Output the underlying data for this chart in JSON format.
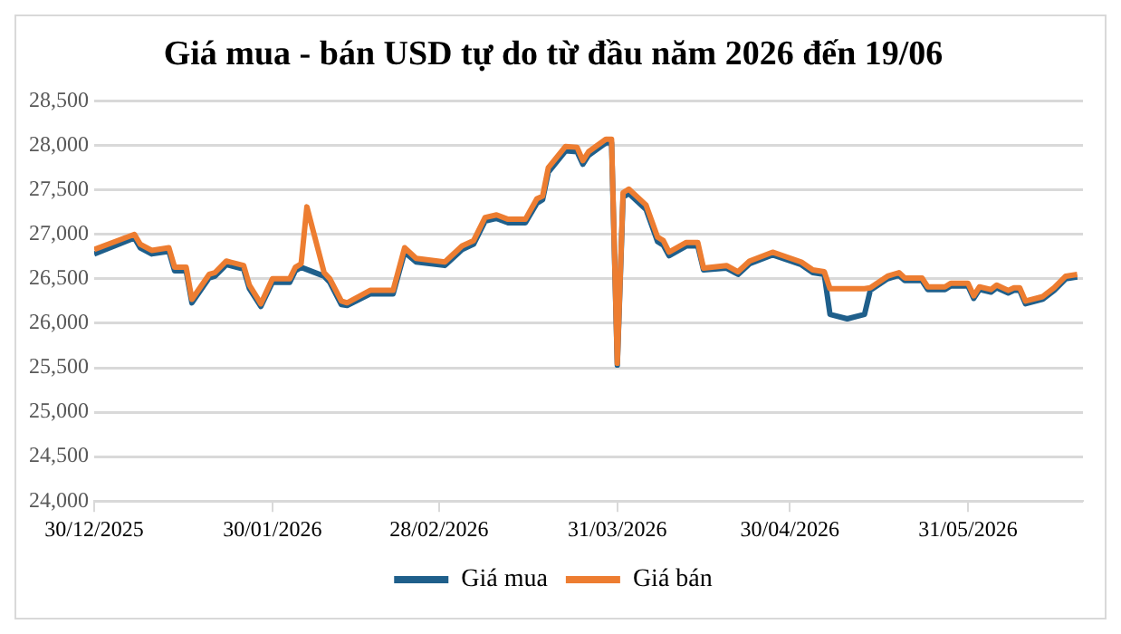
{
  "chart_data": {
    "type": "line",
    "title": "Giá mua - bán USD tự do từ đầu năm 2026 đến 19/06",
    "x": [
      "2025-12-30",
      "2026-01-06",
      "2026-01-07",
      "2026-01-09",
      "2026-01-12",
      "2026-01-13",
      "2026-01-15",
      "2026-01-16",
      "2026-01-19",
      "2026-01-20",
      "2026-01-22",
      "2026-01-25",
      "2026-01-26",
      "2026-01-28",
      "2026-01-30",
      "2026-02-02",
      "2026-02-03",
      "2026-02-04",
      "2026-02-05",
      "2026-02-08",
      "2026-02-09",
      "2026-02-11",
      "2026-02-12",
      "2026-02-16",
      "2026-02-20",
      "2026-02-22",
      "2026-02-24",
      "2026-03-01",
      "2026-03-04",
      "2026-03-06",
      "2026-03-08",
      "2026-03-10",
      "2026-03-12",
      "2026-03-15",
      "2026-03-17",
      "2026-03-18",
      "2026-03-19",
      "2026-03-22",
      "2026-03-24",
      "2026-03-25",
      "2026-03-26",
      "2026-03-29",
      "2026-03-30",
      "2026-03-31",
      "2026-04-01",
      "2026-04-02",
      "2026-04-05",
      "2026-04-07",
      "2026-04-08",
      "2026-04-09",
      "2026-04-12",
      "2026-04-14",
      "2026-04-15",
      "2026-04-19",
      "2026-04-21",
      "2026-04-23",
      "2026-04-27",
      "2026-05-02",
      "2026-05-04",
      "2026-05-06",
      "2026-05-07",
      "2026-05-10",
      "2026-05-13",
      "2026-05-14",
      "2026-05-17",
      "2026-05-19",
      "2026-05-20",
      "2026-05-23",
      "2026-05-24",
      "2026-05-27",
      "2026-05-28",
      "2026-05-31",
      "2026-06-01",
      "2026-06-02",
      "2026-06-04",
      "2026-06-05",
      "2026-06-07",
      "2026-06-08",
      "2026-06-09",
      "2026-06-10",
      "2026-06-13",
      "2026-06-15",
      "2026-06-17",
      "2026-06-19"
    ],
    "series": [
      {
        "name": "Giá mua",
        "color": "#1f5f8b",
        "values": [
          26780,
          26960,
          26850,
          26780,
          26810,
          26590,
          26590,
          26230,
          26510,
          26530,
          26660,
          26610,
          26390,
          26190,
          26460,
          26460,
          26590,
          26630,
          null,
          26530,
          26460,
          26210,
          26200,
          26330,
          26330,
          26800,
          26690,
          26650,
          26830,
          26890,
          27150,
          27180,
          27130,
          27130,
          27350,
          27390,
          27700,
          27940,
          27930,
          27790,
          27890,
          28030,
          28030,
          25530,
          27420,
          27460,
          27280,
          26920,
          26880,
          26760,
          26870,
          26870,
          26600,
          26620,
          26550,
          26670,
          26770,
          26660,
          26570,
          26550,
          26100,
          26050,
          26100,
          26370,
          26500,
          26540,
          26480,
          26480,
          26380,
          26380,
          26420,
          26420,
          26280,
          26380,
          26350,
          26400,
          26340,
          26370,
          26370,
          26220,
          26270,
          26370,
          26500,
          26520
        ]
      },
      {
        "name": "Giá bán",
        "color": "#ed7d31",
        "values": [
          26830,
          27000,
          26890,
          26820,
          26850,
          26630,
          26630,
          26270,
          26550,
          26570,
          26700,
          26650,
          26430,
          26220,
          26500,
          26500,
          26630,
          26670,
          27310,
          26570,
          26500,
          26250,
          26230,
          26370,
          26370,
          26850,
          26730,
          26690,
          26870,
          26930,
          27190,
          27220,
          27170,
          27170,
          27400,
          27430,
          27750,
          27990,
          27980,
          27830,
          27930,
          28070,
          28070,
          25550,
          27470,
          27510,
          27330,
          26970,
          26930,
          26800,
          26910,
          26910,
          26620,
          26650,
          26580,
          26700,
          26800,
          26690,
          26600,
          26580,
          26390,
          26390,
          26390,
          26400,
          26530,
          26570,
          26510,
          26510,
          26410,
          26410,
          26450,
          26450,
          26310,
          26410,
          26380,
          26430,
          26370,
          26400,
          26400,
          26250,
          26300,
          26400,
          26530,
          26550
        ]
      }
    ],
    "xlim": [
      "2025-12-30",
      "2026-06-20"
    ],
    "xticks": [
      {
        "value": "2025-12-30",
        "label": "30/12/2025"
      },
      {
        "value": "2026-01-30",
        "label": "30/01/2026"
      },
      {
        "value": "2026-02-28",
        "label": "28/02/2026"
      },
      {
        "value": "2026-03-31",
        "label": "31/03/2026"
      },
      {
        "value": "2026-04-30",
        "label": "30/04/2026"
      },
      {
        "value": "2026-05-31",
        "label": "31/05/2026"
      }
    ],
    "ylim": [
      24000,
      28500
    ],
    "yticks": [
      {
        "value": 24000,
        "label": "24,000"
      },
      {
        "value": 24500,
        "label": "24,500"
      },
      {
        "value": 25000,
        "label": "25,000"
      },
      {
        "value": 25500,
        "label": "25,500"
      },
      {
        "value": 26000,
        "label": "26,000"
      },
      {
        "value": 26500,
        "label": "26,500"
      },
      {
        "value": 27000,
        "label": "27,000"
      },
      {
        "value": 27500,
        "label": "27,500"
      },
      {
        "value": 28000,
        "label": "28,000"
      },
      {
        "value": 28500,
        "label": "28,500"
      }
    ],
    "grid": "y",
    "legend": "bottom",
    "marker": "none",
    "line_style": "solid"
  }
}
